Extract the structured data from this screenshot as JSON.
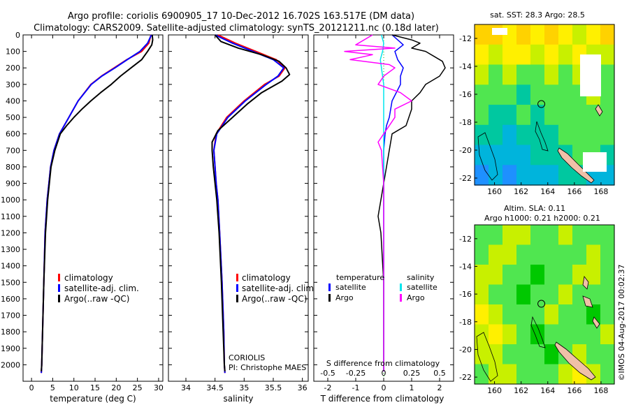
{
  "header": {
    "line1": "Argo profile: coriolis 6900905_17 10-Dec-2012 16.702S 163.517E (DM data)",
    "line2": "Climatology: CARS2009. Satellite-adjusted climatology: synTS_20121211.nc (0.18d later)"
  },
  "footer": {
    "institution": "CORIOLIS",
    "pi": "PI: Christophe MAES",
    "stamp": "©IMOS 04-Aug-2017 00:02:37"
  },
  "colors": {
    "climatology": "#ff0000",
    "satellite": "#0000ff",
    "argo": "#000000",
    "satellite_salinity": "#00e5ee",
    "argo_salinity": "#ff00ff",
    "zero_line": "#00b000"
  },
  "chart_data": [
    {
      "id": "temperature",
      "type": "line",
      "xlabel": "temperature (deg C)",
      "ylabel": "",
      "xlim": [
        -2,
        31
      ],
      "ylim": [
        2100,
        0
      ],
      "xticks": [
        0,
        5,
        10,
        15,
        20,
        25,
        30
      ],
      "xtick_labels": [
        "0",
        "5",
        "10",
        "15",
        "20",
        "25",
        "30"
      ],
      "yticks": [
        0,
        100,
        200,
        300,
        400,
        500,
        600,
        700,
        800,
        900,
        1000,
        1100,
        1200,
        1300,
        1400,
        1500,
        1600,
        1700,
        1800,
        1900,
        2000
      ],
      "ytick_labels": [
        "0",
        "100",
        "200",
        "300",
        "400",
        "500",
        "600",
        "700",
        "800",
        "900",
        "1000",
        "1100",
        "1200",
        "1300",
        "1400",
        "1500",
        "1600",
        "1700",
        "1800",
        "1900",
        "2000"
      ],
      "legend": {
        "position": "center-left",
        "entries": [
          "climatology",
          "satellite-adj. clim.",
          "Argo(..raw -QC)"
        ]
      },
      "series": [
        {
          "name": "climatology",
          "color": "#ff0000",
          "width": 2,
          "depth": [
            0,
            50,
            100,
            150,
            200,
            250,
            300,
            400,
            500,
            600,
            700,
            800,
            900,
            1000,
            1200,
            1500,
            1800,
            2000,
            2050
          ],
          "values": [
            28.2,
            27.7,
            26.0,
            22.5,
            19.5,
            16.5,
            14.0,
            11.0,
            8.8,
            6.6,
            5.3,
            4.5,
            4.1,
            3.7,
            3.2,
            2.9,
            2.6,
            2.4,
            2.3
          ]
        },
        {
          "name": "satellite-adj. clim.",
          "color": "#0000ff",
          "width": 2,
          "depth": [
            0,
            50,
            100,
            150,
            200,
            250,
            300,
            400,
            500,
            600,
            700,
            800,
            900,
            1000,
            1200,
            1500,
            1800,
            2000,
            2050
          ],
          "values": [
            28.3,
            27.4,
            25.6,
            22.6,
            19.7,
            16.6,
            14.1,
            11.0,
            8.8,
            6.6,
            5.3,
            4.5,
            4.1,
            3.7,
            3.2,
            2.9,
            2.6,
            2.4,
            2.3
          ]
        },
        {
          "name": "Argo(..raw -QC)",
          "color": "#000000",
          "width": 2,
          "depth": [
            0,
            30,
            60,
            100,
            150,
            200,
            250,
            300,
            350,
            400,
            450,
            500,
            550,
            600,
            700,
            800,
            900,
            1000,
            1200,
            1500,
            1800,
            2000,
            2040
          ],
          "values": [
            28.5,
            28.6,
            28.4,
            27.4,
            26.0,
            23.5,
            21.0,
            18.8,
            16.3,
            14.0,
            11.9,
            10.0,
            8.3,
            6.8,
            5.5,
            4.6,
            4.2,
            3.8,
            3.3,
            2.9,
            2.6,
            2.4,
            2.3
          ]
        }
      ]
    },
    {
      "id": "salinity",
      "type": "line",
      "xlabel": "salinity",
      "ylabel": "",
      "xlim": [
        33.7,
        36.1
      ],
      "ylim": [
        2100,
        0
      ],
      "xticks": [
        34,
        34.5,
        35,
        35.5,
        36
      ],
      "xtick_labels": [
        "34",
        "34.5",
        "35",
        "35.5",
        "36"
      ],
      "legend": {
        "position": "center-right",
        "entries": [
          "climatology",
          "satellite-adj. clim.",
          "Argo(..raw -QC)"
        ]
      },
      "series": [
        {
          "name": "climatology",
          "color": "#ff0000",
          "width": 2,
          "depth": [
            0,
            50,
            100,
            150,
            200,
            250,
            300,
            400,
            500,
            600,
            700,
            800,
            900,
            1000,
            1200,
            1500,
            1800,
            2000,
            2050
          ],
          "values": [
            34.55,
            34.85,
            35.2,
            35.55,
            35.7,
            35.6,
            35.35,
            35.0,
            34.7,
            34.52,
            34.48,
            34.5,
            34.52,
            34.55,
            34.58,
            34.62,
            34.65,
            34.66,
            34.67
          ]
        },
        {
          "name": "satellite-adj. clim.",
          "color": "#0000ff",
          "width": 2,
          "depth": [
            0,
            50,
            100,
            150,
            200,
            250,
            300,
            400,
            500,
            600,
            700,
            800,
            900,
            1000,
            1200,
            1500,
            1800,
            2000,
            2050
          ],
          "values": [
            34.5,
            34.8,
            35.15,
            35.5,
            35.68,
            35.58,
            35.38,
            35.02,
            34.72,
            34.53,
            34.48,
            34.5,
            34.52,
            34.55,
            34.58,
            34.62,
            34.65,
            34.66,
            34.67
          ]
        },
        {
          "name": "Argo(..raw -QC)",
          "color": "#000000",
          "width": 2,
          "depth": [
            0,
            40,
            80,
            120,
            160,
            200,
            240,
            280,
            350,
            420,
            500,
            580,
            650,
            700,
            800,
            900,
            1000,
            1200,
            1500,
            1800,
            2000,
            2040
          ],
          "values": [
            34.5,
            34.6,
            34.9,
            35.3,
            35.6,
            35.72,
            35.78,
            35.65,
            35.3,
            35.05,
            34.8,
            34.55,
            34.45,
            34.45,
            34.47,
            34.5,
            34.53,
            34.57,
            34.61,
            34.64,
            34.66,
            34.67
          ]
        }
      ]
    },
    {
      "id": "difference",
      "type": "line",
      "xlabel": "T difference from climatology",
      "xlabel_top": "S difference from climatology",
      "xlim": [
        -2.5,
        2.5
      ],
      "ylim": [
        2100,
        0
      ],
      "xticks": [
        -2,
        -1,
        0,
        1,
        2
      ],
      "xtick_labels": [
        "-2",
        "-1",
        "0",
        "1",
        "2"
      ],
      "sticks": [
        -0.5,
        -0.25,
        0,
        0.25,
        0.5
      ],
      "stick_labels": [
        "-0.5",
        "-0.25",
        "0",
        "0.25",
        "0.5"
      ],
      "legend": {
        "position": "bottom",
        "left_title": "temperature",
        "right_title": "salinity",
        "entries": [
          "satellite",
          "Argo",
          "satellite",
          "Argo"
        ]
      },
      "series": [
        {
          "name": "temperature satellite",
          "color": "#0000ff",
          "width": 1.5,
          "depth": [
            0,
            30,
            60,
            100,
            150,
            200,
            250,
            300,
            400,
            500,
            550,
            600,
            700,
            800,
            900,
            1000,
            1200,
            1500,
            2000,
            2040
          ],
          "values": [
            0.3,
            0.5,
            0.7,
            0.4,
            0.5,
            0.7,
            0.6,
            0.6,
            0.3,
            0.2,
            0.1,
            0.05,
            0.0,
            0.0,
            0.0,
            0.0,
            0.0,
            0.0,
            0.0,
            0.0
          ]
        },
        {
          "name": "temperature Argo",
          "color": "#000000",
          "width": 1.5,
          "depth": [
            0,
            30,
            50,
            80,
            100,
            130,
            160,
            200,
            250,
            300,
            350,
            400,
            450,
            500,
            550,
            600,
            700,
            800,
            900,
            1000,
            1100,
            1200,
            1500,
            2000,
            2040
          ],
          "values": [
            0.3,
            1.0,
            1.3,
            1.0,
            1.5,
            1.8,
            2.1,
            2.2,
            2.0,
            1.5,
            1.3,
            1.0,
            1.0,
            0.9,
            0.8,
            0.3,
            0.2,
            0.1,
            0.0,
            -0.1,
            -0.2,
            -0.1,
            0.0,
            0.0,
            0.0
          ]
        },
        {
          "name": "salinity satellite",
          "color": "#00e5ee",
          "width": 1.5,
          "depth": [
            0,
            50,
            100,
            150,
            200,
            300,
            400,
            500,
            600,
            800,
            1000,
            1500,
            2000,
            2040
          ],
          "values": [
            -0.02,
            0.0,
            -0.01,
            -0.03,
            -0.02,
            0.0,
            0.0,
            0.0,
            0.0,
            0.0,
            0.0,
            0.0,
            0.0,
            0.0
          ]
        },
        {
          "name": "salinity Argo",
          "color": "#ff00ff",
          "width": 1.5,
          "depth": [
            0,
            60,
            80,
            100,
            120,
            150,
            180,
            200,
            250,
            300,
            350,
            400,
            450,
            500,
            550,
            600,
            650,
            700,
            800,
            900,
            1000,
            1500,
            2000,
            2040
          ],
          "values": [
            -0.1,
            -0.25,
            0.1,
            -0.35,
            -0.1,
            -0.3,
            0.05,
            0.1,
            0.0,
            -0.05,
            0.15,
            0.25,
            0.1,
            0.1,
            0.05,
            0.0,
            -0.05,
            -0.02,
            -0.01,
            0.0,
            0.0,
            0.0,
            0.0,
            0.0
          ]
        }
      ]
    },
    {
      "id": "sst_map",
      "type": "heatmap",
      "title": "sat. SST: 28.3 Argo: 28.5",
      "xlim": [
        158.5,
        169
      ],
      "ylim": [
        -22.5,
        -11
      ],
      "xticks": [
        160,
        162,
        164,
        166,
        168
      ],
      "xtick_labels": [
        "160",
        "162",
        "164",
        "166",
        "168"
      ],
      "yticks": [
        -12,
        -14,
        -16,
        -18,
        -20,
        -22
      ],
      "ytick_labels": [
        "-12",
        "-14",
        "-16",
        "-18",
        "-20",
        "-22"
      ],
      "float_position": [
        163.517,
        -16.702
      ],
      "field": [
        [
          "#ffd200",
          "#ffd200",
          "#fff000",
          "#ffd200",
          "#fff000",
          "#ffd200",
          "#fff000",
          "#c8f000",
          "#fff000",
          "#ffd200"
        ],
        [
          "#fff000",
          "#c8f000",
          "#fff000",
          "#fff000",
          "#c8f000",
          "#fff000",
          "#c8f000",
          "#fff000",
          "#c8f000",
          "#c8f000"
        ],
        [
          "#c8f000",
          "#50e650",
          "#c8f000",
          "#50e650",
          "#50e650",
          "#c8f000",
          "#50e650",
          "#c8f000",
          "#50e650",
          "#50e650"
        ],
        [
          "#50e650",
          "#50e650",
          "#50e650",
          "#00c8a0",
          "#50e650",
          "#50e650",
          "#50e650",
          "#50e650",
          "#c8f000",
          "#50e650"
        ],
        [
          "#50e650",
          "#00c8a0",
          "#00c8a0",
          "#50e650",
          "#00c8a0",
          "#50e650",
          "#50e650",
          "#50e650",
          "#50e650",
          "#50e650"
        ],
        [
          "#00c8a0",
          "#00c8a0",
          "#00b4dc",
          "#00c8a0",
          "#00c8a0",
          "#00c8a0",
          "#50e650",
          "#50e650",
          "#50e650",
          "#50e650"
        ],
        [
          "#00b4dc",
          "#00b4dc",
          "#00b4dc",
          "#00b4dc",
          "#00c8a0",
          "#00c8a0",
          "#00c8a0",
          "#50e650",
          "#50e650",
          "#00c8a0"
        ],
        [
          "#1e90ff",
          "#00b4dc",
          "#1e90ff",
          "#00b4dc",
          "#00b4dc",
          "#00b4dc",
          "#00c8a0",
          "#00c8a0",
          "#00b4dc",
          "#00b4dc"
        ]
      ]
    },
    {
      "id": "sla_map",
      "type": "heatmap",
      "title": "Altim. SLA: 0.11",
      "subtitle": "Argo h1000: 0.21 h2000: 0.21",
      "xlim": [
        158.5,
        169
      ],
      "ylim": [
        -22.5,
        -11
      ],
      "xticks": [
        160,
        162,
        164,
        166,
        168
      ],
      "xtick_labels": [
        "160",
        "162",
        "164",
        "166",
        "168"
      ],
      "yticks": [
        -12,
        -14,
        -16,
        -18,
        -20,
        -22
      ],
      "ytick_labels": [
        "-12",
        "-14",
        "-16",
        "-18",
        "-20",
        "-22"
      ],
      "float_position": [
        163.517,
        -16.702
      ],
      "field": [
        [
          "#50e650",
          "#50e650",
          "#c8f000",
          "#c8f000",
          "#50e650",
          "#50e650",
          "#c8f000",
          "#50e650",
          "#50e650",
          "#50e650"
        ],
        [
          "#50e650",
          "#c8f000",
          "#c8f000",
          "#50e650",
          "#50e650",
          "#50e650",
          "#50e650",
          "#50e650",
          "#c8f000",
          "#50e650"
        ],
        [
          "#c8f000",
          "#c8f000",
          "#50e650",
          "#50e650",
          "#00c800",
          "#50e650",
          "#50e650",
          "#c8f000",
          "#c8f000",
          "#50e650"
        ],
        [
          "#c8f000",
          "#50e650",
          "#50e650",
          "#00c800",
          "#50e650",
          "#50e650",
          "#c8f000",
          "#50e650",
          "#50e650",
          "#50e650"
        ],
        [
          "#fff000",
          "#c8f000",
          "#50e650",
          "#50e650",
          "#50e650",
          "#c8f000",
          "#50e650",
          "#50e650",
          "#00c800",
          "#50e650"
        ],
        [
          "#c8f000",
          "#fff000",
          "#c8f000",
          "#50e650",
          "#00c800",
          "#50e650",
          "#50e650",
          "#50e650",
          "#50e650",
          "#c8f000"
        ],
        [
          "#c8f000",
          "#c8f000",
          "#50e650",
          "#50e650",
          "#50e650",
          "#00c800",
          "#50e650",
          "#c8f000",
          "#50e650",
          "#50e650"
        ],
        [
          "#50e650",
          "#c8f000",
          "#c8f000",
          "#50e650",
          "#50e650",
          "#50e650",
          "#c8f000",
          "#fff000",
          "#c8f000",
          "#50e650"
        ]
      ]
    }
  ]
}
